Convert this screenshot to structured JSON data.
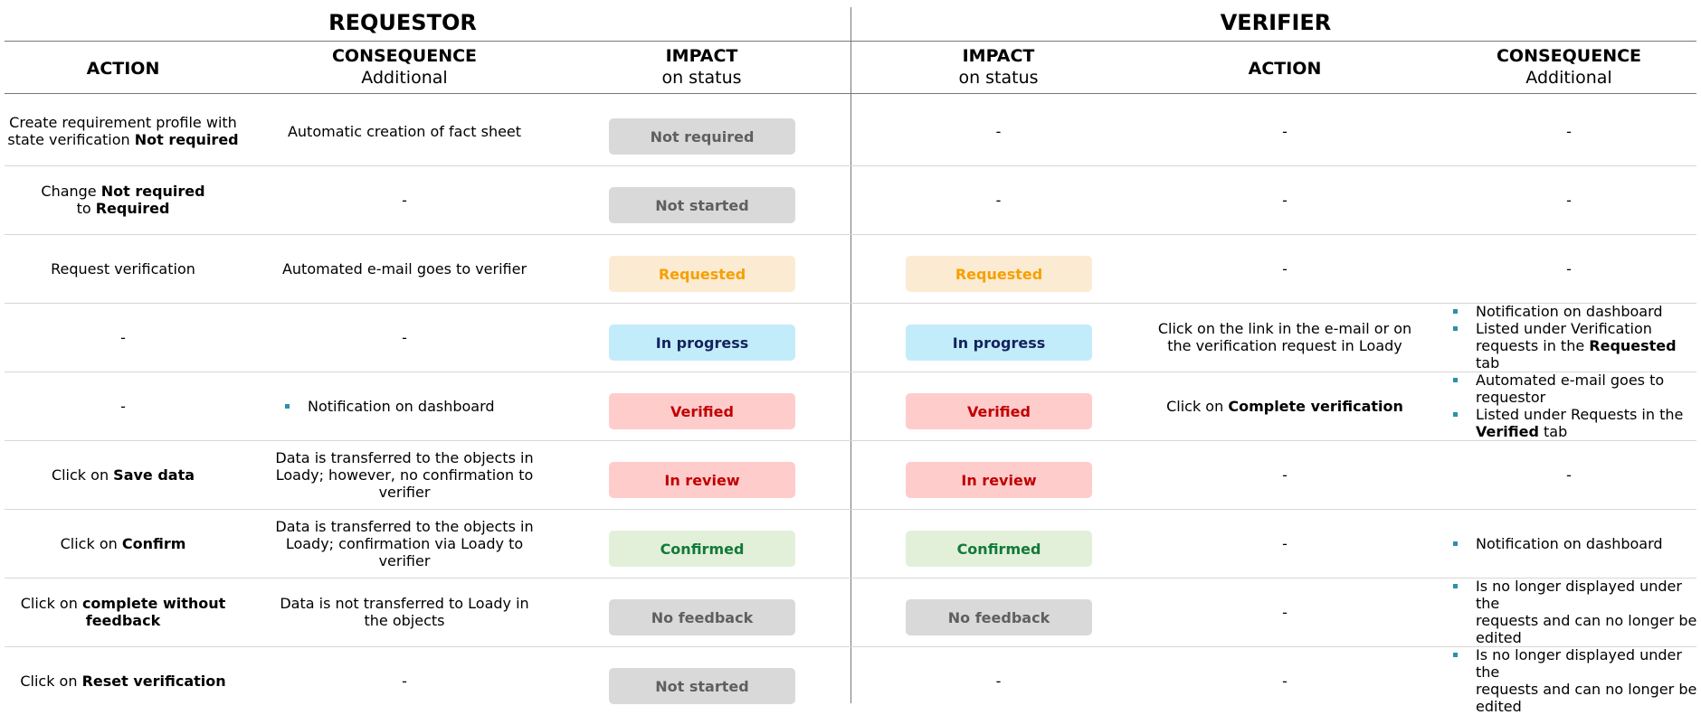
{
  "headers": {
    "requestor": "REQUESTOR",
    "verifier": "VERIFIER",
    "columns": {
      "req_action": "ACTION",
      "req_consequence": "CONSEQUENCE",
      "req_consequence_sub": "Additional",
      "req_impact": "IMPACT",
      "req_impact_sub": "on status",
      "ver_impact": "IMPACT",
      "ver_impact_sub": "on status",
      "ver_action": "ACTION",
      "ver_consequence": "CONSEQUENCE",
      "ver_consequence_sub": "Additional"
    }
  },
  "colors": {
    "grey": "#d9d9d9",
    "orange": "#fcebd3",
    "blue": "#c3ecfb",
    "red": "#ffcccc",
    "green": "#e2f0d9"
  },
  "rows": [
    {
      "req_action": [
        "Create requirement profile with",
        "state verification ",
        "Not required"
      ],
      "req_consequence": "Automatic creation of fact sheet",
      "req_status": "Not required",
      "ver_status": "-",
      "ver_action": "-",
      "ver_consequence": "-"
    },
    {
      "req_action": [
        "Change ",
        "Not required",
        "to ",
        "Required"
      ],
      "req_consequence": "-",
      "req_status": "Not started",
      "ver_status": "-",
      "ver_action": "-",
      "ver_consequence": "-"
    },
    {
      "req_action": "Request verification",
      "req_consequence": "Automated e-mail goes to verifier",
      "req_status": "Requested",
      "ver_status": "Requested",
      "ver_action": "-",
      "ver_consequence": "-"
    },
    {
      "req_action": "-",
      "req_consequence": "-",
      "req_status": "In progress",
      "ver_status": "In progress",
      "ver_action": [
        "Click on the link in the e-mail or on",
        "the verification request in Loady"
      ],
      "ver_consequence_items": [
        "Notification on dashboard",
        "Listed under Verification",
        "requests in the ",
        "Requested",
        " tab"
      ]
    },
    {
      "req_action": "-",
      "req_consequence_items": [
        "Notification on dashboard"
      ],
      "req_status": "Verified",
      "ver_status": "Verified",
      "ver_action": [
        "Click on ",
        "Complete verification"
      ],
      "ver_consequence_items": [
        "Automated e-mail goes to",
        "requestor",
        "Listed under Requests in the",
        "Verified",
        " tab"
      ]
    },
    {
      "req_action": [
        "Click on ",
        "Save data"
      ],
      "req_consequence": [
        "Data is transferred to the objects in",
        "Loady; however, no confirmation to",
        "verifier"
      ],
      "req_status": "In review",
      "ver_status": "In review",
      "ver_action": "-",
      "ver_consequence": "-"
    },
    {
      "req_action": [
        "Click on ",
        "Confirm"
      ],
      "req_consequence": [
        "Data is transferred to the objects in",
        "Loady; confirmation via Loady to",
        "verifier"
      ],
      "req_status": "Confirmed",
      "ver_status": "Confirmed",
      "ver_action": "-",
      "ver_consequence_items": [
        "Notification on dashboard"
      ]
    },
    {
      "req_action": [
        "Click on ",
        "complete without",
        "feedback"
      ],
      "req_consequence": [
        "Data is not transferred to Loady in",
        "the objects"
      ],
      "req_status": "No feedback",
      "ver_status": "No feedback",
      "ver_action": "-",
      "ver_consequence_items": [
        "Is no longer displayed under the",
        "requests and can no longer be",
        "edited"
      ]
    },
    {
      "req_action": [
        "Click on ",
        "Reset verification"
      ],
      "req_consequence": "-",
      "req_status": "Not started",
      "ver_status": "-",
      "ver_action": "-",
      "ver_consequence_items": [
        "Is no longer displayed under the",
        "requests and can no longer be",
        "edited"
      ]
    }
  ]
}
